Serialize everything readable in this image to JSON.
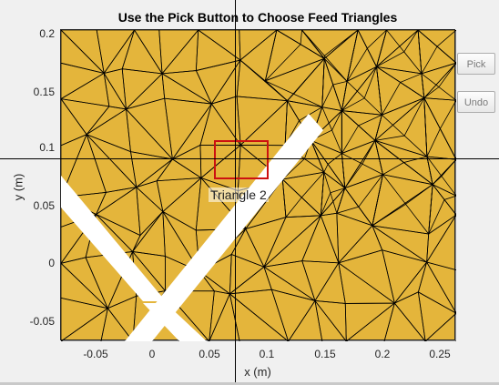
{
  "window": {
    "title": "Use the Pick Button to Choose Feed Triangles"
  },
  "axes": {
    "xlabel": "x (m)",
    "ylabel": "y (m)",
    "xticks": [
      "-0.05",
      "0",
      "0.05",
      "0.1",
      "0.15",
      "0.2",
      "0.25"
    ],
    "yticks": [
      "0.2",
      "0.15",
      "0.1",
      "0.05",
      "0",
      "-0.05"
    ],
    "xlim": [
      -0.08,
      0.26
    ],
    "ylim": [
      -0.067,
      0.2
    ],
    "mesh_color": "#e4b53b",
    "edge_color": "#000000"
  },
  "buttons": {
    "pick_label": "Pick",
    "undo_label": "Undo"
  },
  "selection": {
    "tooltip": "Triangle 2",
    "box_color": "#cc1111"
  }
}
